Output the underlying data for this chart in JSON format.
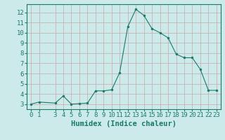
{
  "x": [
    0,
    1,
    3,
    4,
    5,
    6,
    7,
    8,
    9,
    10,
    11,
    12,
    13,
    14,
    15,
    16,
    17,
    18,
    19,
    20,
    21,
    22,
    23
  ],
  "y": [
    3.0,
    3.2,
    3.1,
    3.8,
    3.0,
    3.05,
    3.1,
    4.3,
    4.3,
    4.4,
    6.1,
    10.6,
    12.3,
    11.7,
    10.4,
    10.0,
    9.5,
    7.9,
    7.55,
    7.55,
    6.4,
    4.35,
    4.35
  ],
  "line_color": "#1a7a6a",
  "marker": "o",
  "marker_size": 2.0,
  "bg_color": "#cceaea",
  "grid_color_v": "#c8a8a8",
  "grid_color_h": "#c8a8a8",
  "xlabel": "Humidex (Indice chaleur)",
  "xlim": [
    -0.5,
    23.5
  ],
  "ylim": [
    2.5,
    12.8
  ],
  "yticks": [
    3,
    4,
    5,
    6,
    7,
    8,
    9,
    10,
    11,
    12
  ],
  "xticks": [
    0,
    1,
    3,
    4,
    5,
    6,
    7,
    8,
    9,
    10,
    11,
    12,
    13,
    14,
    15,
    16,
    17,
    18,
    19,
    20,
    21,
    22,
    23
  ],
  "tick_fontsize": 6.5,
  "xlabel_fontsize": 7.5,
  "tick_color": "#1a7a6a",
  "axis_color": "#1a7a6a"
}
